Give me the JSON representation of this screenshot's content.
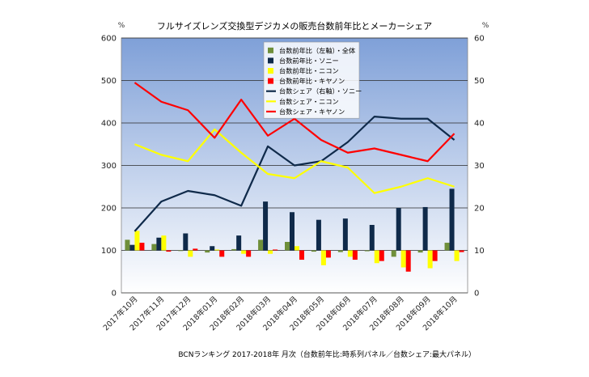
{
  "chart_data": {
    "type": "bar+line",
    "title": "フルサイズレンズ交換型デジカメの販売台数前年比とメーカーシェア",
    "footnote": "BCNランキング 2017-2018年 月次（台数前年比:時系列パネル／台数シェア:最大パネル）",
    "ylabel_left": "%",
    "ylabel_right": "%",
    "ylim_left": [
      0,
      600
    ],
    "ylim_right": [
      0,
      60
    ],
    "yticks_left": [
      0,
      100,
      200,
      300,
      400,
      500,
      600
    ],
    "yticks_right": [
      0,
      10,
      20,
      30,
      40,
      50,
      60
    ],
    "grid": true,
    "legend_position": "top-center",
    "categories": [
      "2017年10月",
      "2017年11月",
      "2017年12月",
      "2018年01月",
      "2018年02月",
      "2018年03月",
      "2018年04月",
      "2018年05月",
      "2018年06月",
      "2018年07月",
      "2018年08月",
      "2018年09月",
      "2018年10月"
    ],
    "bar_series": [
      {
        "name": "台数前年比（左軸）・全体",
        "color": "#6f8f3a",
        "values": [
          125,
          115,
          100,
          95,
          103,
          125,
          120,
          97,
          96,
          98,
          85,
          95,
          118
        ]
      },
      {
        "name": "台数前年比・ソニー",
        "color": "#0f2a4a",
        "values": [
          113,
          130,
          140,
          110,
          135,
          215,
          190,
          172,
          175,
          160,
          200,
          202,
          245
        ]
      },
      {
        "name": "台数前年比・ニコン",
        "color": "#ffff00",
        "values": [
          146,
          135,
          85,
          102,
          92,
          92,
          110,
          65,
          85,
          70,
          60,
          58,
          75
        ]
      },
      {
        "name": "台数前年比・キヤノン",
        "color": "#ff0000",
        "values": [
          118,
          97,
          104,
          85,
          85,
          102,
          78,
          83,
          78,
          75,
          50,
          75,
          96
        ]
      }
    ],
    "line_series": [
      {
        "name": "台数シェア（右軸）・ソニー",
        "color": "#0f2a4a",
        "values": [
          14.5,
          21.5,
          24,
          23,
          20.5,
          34.5,
          30,
          31,
          35.5,
          41.5,
          41,
          41,
          36
        ]
      },
      {
        "name": "台数シェア・ニコン",
        "color": "#ffff00",
        "values": [
          35,
          32.5,
          31,
          38.5,
          33,
          28,
          27,
          31,
          29.5,
          23.5,
          25,
          27,
          25
        ]
      },
      {
        "name": "台数シェア・キヤノン",
        "color": "#ff0000",
        "values": [
          49.5,
          45,
          43,
          36.5,
          45.5,
          37,
          41,
          36,
          33,
          34,
          32.5,
          31,
          37.5
        ]
      }
    ],
    "colors": {
      "plot_top": "#7fa0d8",
      "plot_bottom": "#ffffff"
    }
  }
}
